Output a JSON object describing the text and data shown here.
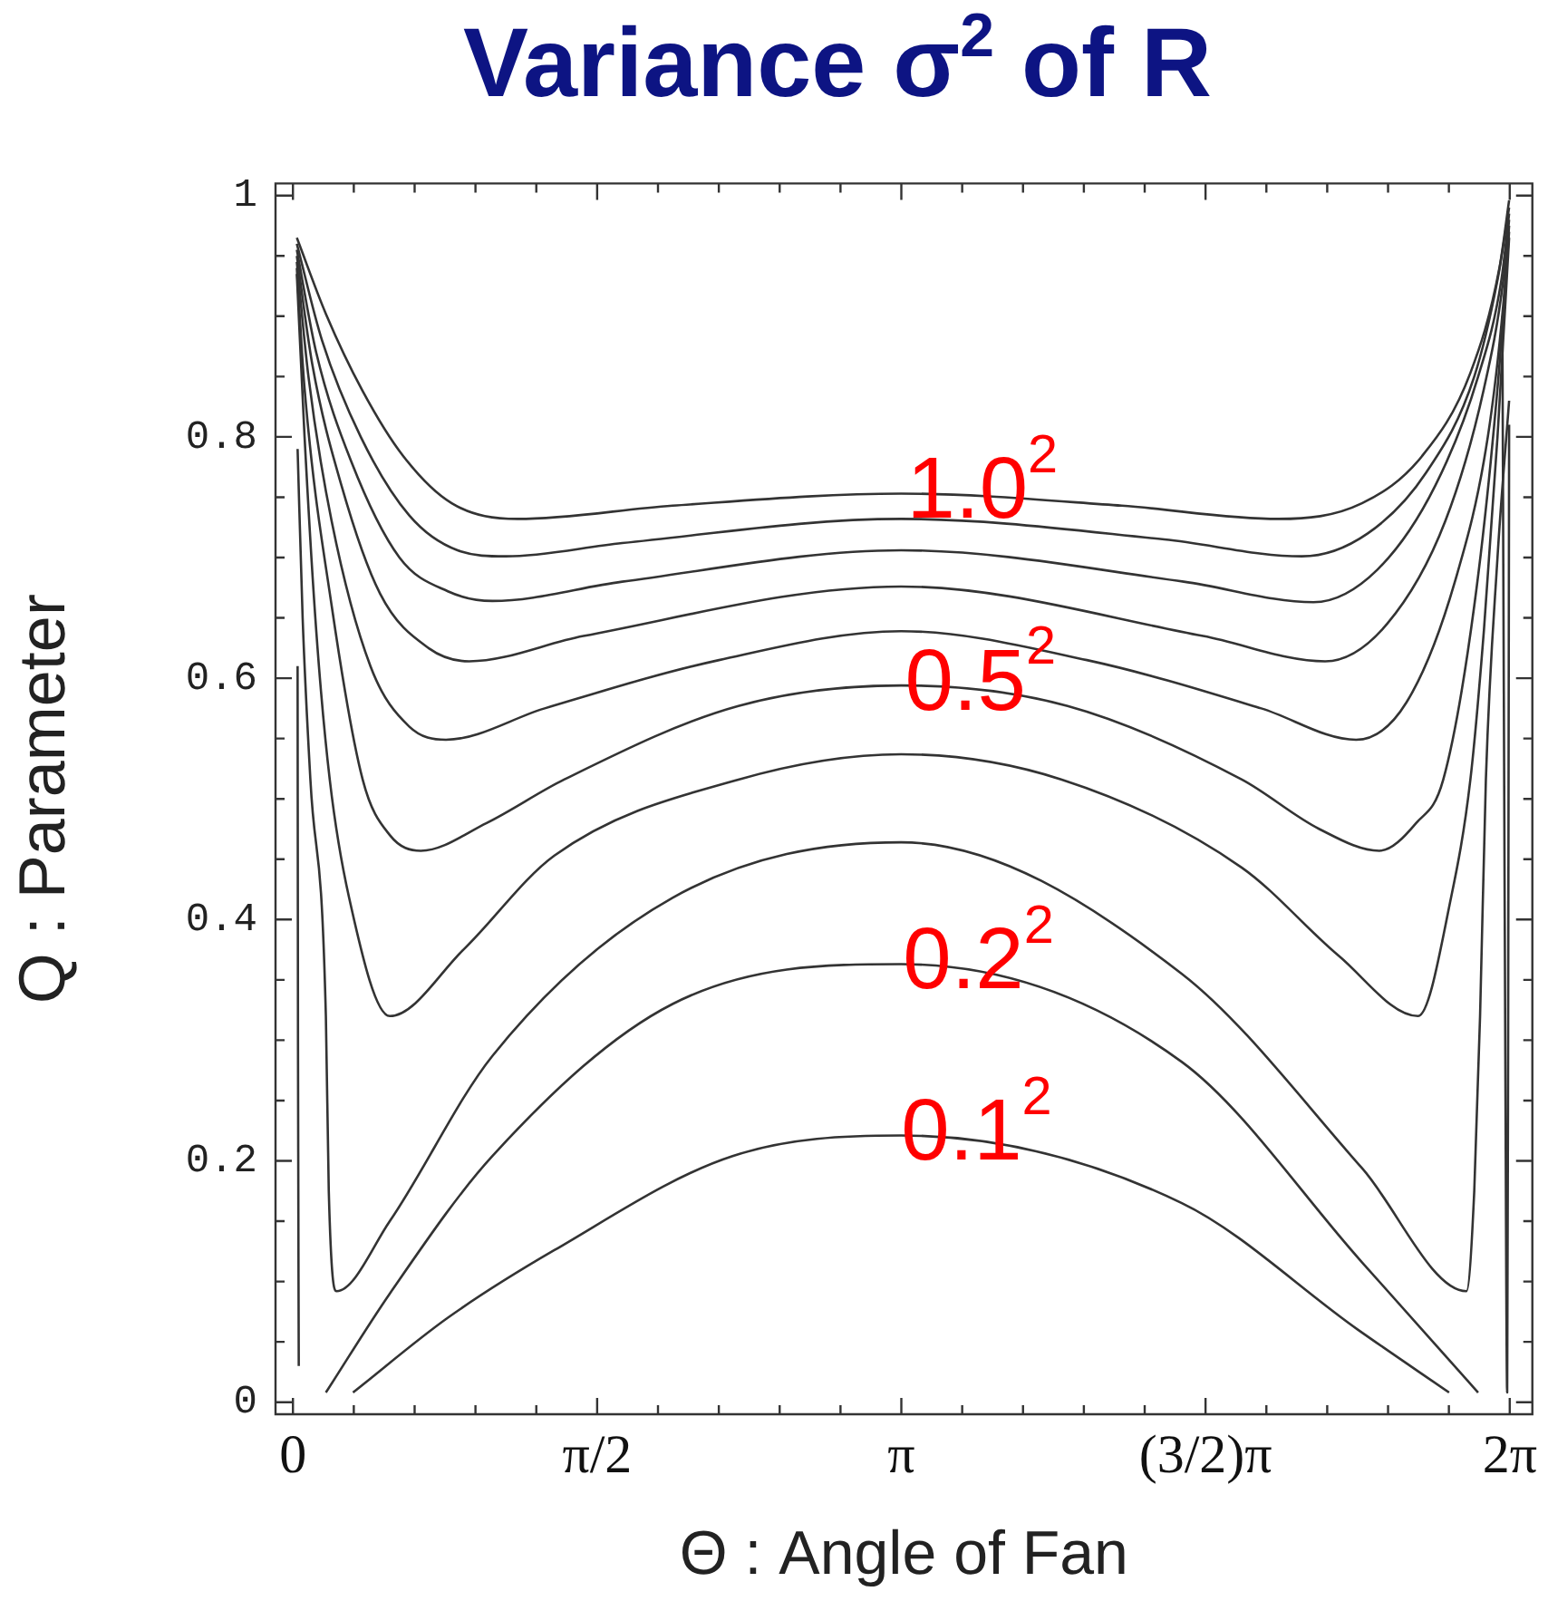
{
  "chart_data": {
    "type": "line",
    "title": "Variance σ$^{2}$ of R",
    "xlabel": "Θ : Angle of Fan",
    "ylabel": "Q : Parameter",
    "marker": "none",
    "line_style": "solid",
    "xlim": [
      -0.09,
      6.4
    ],
    "ylim": [
      -0.01,
      1.01
    ],
    "xticks": [
      {
        "value": 0,
        "label": "0"
      },
      {
        "value": 0.3142,
        "label": null
      },
      {
        "value": 0.6283,
        "label": null
      },
      {
        "value": 0.9425,
        "label": null
      },
      {
        "value": 1.2566,
        "label": null
      },
      {
        "value": 1.5708,
        "label": "π/2"
      },
      {
        "value": 1.885,
        "label": null
      },
      {
        "value": 2.1991,
        "label": null
      },
      {
        "value": 2.5133,
        "label": null
      },
      {
        "value": 2.8274,
        "label": null
      },
      {
        "value": 3.1416,
        "label": "π"
      },
      {
        "value": 3.4558,
        "label": null
      },
      {
        "value": 3.7699,
        "label": null
      },
      {
        "value": 4.0841,
        "label": null
      },
      {
        "value": 4.3982,
        "label": null
      },
      {
        "value": 4.7124,
        "label": "(3/2)π"
      },
      {
        "value": 5.0265,
        "label": null
      },
      {
        "value": 5.3407,
        "label": null
      },
      {
        "value": 5.6549,
        "label": null
      },
      {
        "value": 5.969,
        "label": null
      },
      {
        "value": 6.2832,
        "label": "2π"
      }
    ],
    "yticks": [
      0,
      {
        "value": 0.05,
        "label": null
      },
      {
        "value": 0.1,
        "label": null
      },
      {
        "value": 0.15,
        "label": null
      },
      0.2,
      {
        "value": 0.25,
        "label": null
      },
      {
        "value": 0.3,
        "label": null
      },
      {
        "value": 0.35,
        "label": null
      },
      0.4,
      {
        "value": 0.45,
        "label": null
      },
      {
        "value": 0.5,
        "label": null
      },
      {
        "value": 0.55,
        "label": null
      },
      0.6,
      {
        "value": 0.65,
        "label": null
      },
      {
        "value": 0.7,
        "label": null
      },
      {
        "value": 0.75,
        "label": null
      },
      0.8,
      {
        "value": 0.85,
        "label": null
      },
      {
        "value": 0.9,
        "label": null
      },
      {
        "value": 0.95,
        "label": null
      },
      1
    ],
    "series": [
      {
        "color": "#333333",
        "x": [
          0.02,
          0.17,
          0.36,
          0.57,
          0.82,
          1.16,
          1.96,
          3.14,
          4.28,
          5.09,
          5.52,
          5.83,
          6.08,
          6.23,
          6.28
        ],
        "values": [
          0.965,
          0.902,
          0.838,
          0.784,
          0.745,
          0.732,
          0.743,
          0.753,
          0.743,
          0.732,
          0.745,
          0.784,
          0.853,
          0.94,
          0.996
        ]
      },
      {
        "color": "#333333",
        "x": [
          0.02,
          0.15,
          0.35,
          0.6,
          0.85,
          1.1,
          1.7,
          3.14,
          4.5,
          5.21,
          5.55,
          5.85,
          6.1,
          6.22,
          6.28
        ],
        "values": [
          0.96,
          0.88,
          0.8,
          0.735,
          0.706,
          0.701,
          0.712,
          0.732,
          0.715,
          0.701,
          0.72,
          0.77,
          0.85,
          0.93,
          0.99
        ]
      },
      {
        "color": "#333333",
        "x": [
          0.02,
          0.12,
          0.3,
          0.55,
          0.8,
          1.03,
          1.7,
          3.14,
          4.6,
          5.27,
          5.6,
          5.9,
          6.12,
          6.24,
          6.28
        ],
        "values": [
          0.955,
          0.87,
          0.78,
          0.7,
          0.672,
          0.664,
          0.68,
          0.706,
          0.68,
          0.663,
          0.69,
          0.76,
          0.85,
          0.93,
          0.985
        ]
      },
      {
        "color": "#333333",
        "x": [
          0.02,
          0.1,
          0.25,
          0.45,
          0.7,
          0.91,
          1.5,
          3.14,
          4.7,
          5.33,
          5.65,
          5.95,
          6.15,
          6.25,
          6.28
        ],
        "values": [
          0.95,
          0.86,
          0.76,
          0.67,
          0.625,
          0.614,
          0.635,
          0.676,
          0.635,
          0.614,
          0.645,
          0.73,
          0.84,
          0.93,
          0.98
        ]
      },
      {
        "color": "#333333",
        "x": [
          0.02,
          0.08,
          0.2,
          0.4,
          0.6,
          0.79,
          1.3,
          2.2,
          3.14,
          4.1,
          5.0,
          5.49,
          5.75,
          6.0,
          6.17,
          6.25,
          6.28
        ],
        "values": [
          0.945,
          0.85,
          0.73,
          0.61,
          0.56,
          0.549,
          0.575,
          0.615,
          0.639,
          0.615,
          0.575,
          0.549,
          0.58,
          0.68,
          0.8,
          0.91,
          0.975
        ]
      },
      {
        "color": "#333333",
        "x": [
          0.02,
          0.06,
          0.2,
          0.36,
          0.5,
          0.66,
          1.0,
          1.4,
          2.3,
          3.14,
          4.0,
          4.9,
          5.3,
          5.61,
          5.8,
          5.94,
          6.1,
          6.22,
          6.28
        ],
        "values": [
          0.94,
          0.84,
          0.66,
          0.516,
          0.47,
          0.457,
          0.48,
          0.516,
          0.577,
          0.594,
          0.577,
          0.516,
          0.475,
          0.457,
          0.48,
          0.516,
          0.66,
          0.84,
          0.97
        ]
      },
      {
        "color": "#333333",
        "x": [
          0.02,
          0.06,
          0.12,
          0.19,
          0.29,
          0.5,
          0.88,
          1.35,
          2.3,
          3.14,
          3.97,
          4.9,
          5.4,
          5.81,
          5.98,
          6.08,
          6.15,
          6.22,
          6.28
        ],
        "values": [
          0.935,
          0.8,
          0.64,
          0.516,
          0.418,
          0.32,
          0.375,
          0.453,
          0.516,
          0.537,
          0.516,
          0.443,
          0.37,
          0.32,
          0.418,
          0.516,
          0.64,
          0.8,
          0.965
        ]
      },
      {
        "color": "#333333",
        "x": [
          0.024,
          0.05,
          0.09,
          0.17,
          0.185,
          0.225,
          0.5,
          1.03,
          1.96,
          3.14,
          4.59,
          5.52,
          6.06,
          6.1,
          6.13,
          6.16,
          6.22,
          6.28
        ],
        "values": [
          0.79,
          0.65,
          0.516,
          0.32,
          0.175,
          0.092,
          0.15,
          0.287,
          0.418,
          0.464,
          0.355,
          0.194,
          0.092,
          0.175,
          0.32,
          0.516,
          0.7,
          0.83
        ]
      },
      {
        "color": "#333333",
        "x": [
          0.17,
          0.5,
          1.03,
          1.96,
          3.14,
          4.59,
          5.52,
          6.12
        ],
        "values": [
          0.008,
          0.09,
          0.204,
          0.33,
          0.363,
          0.282,
          0.116,
          0.008
        ]
      },
      {
        "color": "#333333",
        "x": [
          0.31,
          0.8,
          1.35,
          2.27,
          3.14,
          4.59,
          5.5,
          5.97
        ],
        "values": [
          0.008,
          0.07,
          0.126,
          0.204,
          0.221,
          0.165,
          0.06,
          0.008
        ]
      },
      {
        "color": "#333333",
        "x": [
          0.024,
          0.026,
          0.03
        ],
        "values": [
          0.61,
          0.3,
          0.03
        ]
      },
      {
        "color": "#333333",
        "x": [
          6.245,
          6.26,
          6.27,
          6.275,
          6.28
        ],
        "values": [
          0.9,
          0.3,
          0.008,
          0.3,
          0.81
        ]
      }
    ],
    "annotations": [
      {
        "text": "1.0$^{2}$",
        "x": 3.17,
        "y": 0.753
      },
      {
        "text": "0.5$^{2}$",
        "x": 3.16,
        "y": 0.594
      },
      {
        "text": "0.2$^{2}$",
        "x": 3.15,
        "y": 0.363
      },
      {
        "text": "0.1$^{2}$",
        "x": 3.14,
        "y": 0.221
      }
    ]
  }
}
